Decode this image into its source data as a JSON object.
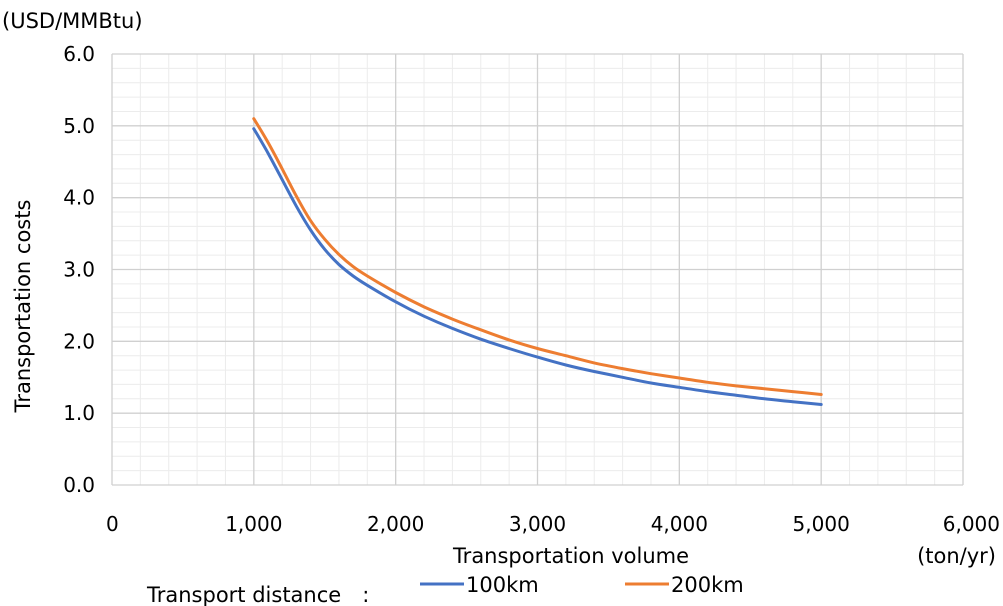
{
  "chart_data": {
    "type": "line",
    "y_unit": "(USD/MMBtu)",
    "x_unit": "(ton/yr)",
    "xlabel": "Transportation volume",
    "ylabel": "Transportation costs",
    "xlim": [
      0,
      6000
    ],
    "ylim": [
      0,
      6
    ],
    "x_ticks": [
      0,
      1000,
      2000,
      3000,
      4000,
      5000,
      6000
    ],
    "x_tick_labels": [
      "0",
      "1,000",
      "2,000",
      "3,000",
      "4,000",
      "5,000",
      "6,000"
    ],
    "y_ticks": [
      0,
      1,
      2,
      3,
      4,
      5,
      6
    ],
    "y_tick_labels": [
      "0.0",
      "1.0",
      "2.0",
      "3.0",
      "4.0",
      "5.0",
      "6.0"
    ],
    "grid": true,
    "minor_grid": true,
    "legend_title": "Transport distance　:",
    "legend_position": "bottom",
    "series": [
      {
        "name": "100km",
        "color": "#4472C4",
        "x": [
          1000,
          1100,
          1200,
          1300,
          1400,
          1500,
          1600,
          1700,
          1800,
          2000,
          2200,
          2400,
          2600,
          2800,
          3000,
          3200,
          3400,
          3600,
          3800,
          4000,
          4200,
          4400,
          4600,
          4800,
          5000
        ],
        "y": [
          4.96,
          4.62,
          4.25,
          3.88,
          3.55,
          3.28,
          3.07,
          2.91,
          2.78,
          2.55,
          2.35,
          2.18,
          2.03,
          1.9,
          1.78,
          1.67,
          1.58,
          1.5,
          1.42,
          1.36,
          1.3,
          1.25,
          1.2,
          1.16,
          1.12
        ]
      },
      {
        "name": "200km",
        "color": "#ED7D31",
        "x": [
          1000,
          1100,
          1200,
          1300,
          1400,
          1500,
          1600,
          1700,
          1800,
          2000,
          2200,
          2400,
          2600,
          2800,
          3000,
          3200,
          3400,
          3600,
          3800,
          4000,
          4200,
          4400,
          4600,
          4800,
          5000
        ],
        "y": [
          5.1,
          4.77,
          4.4,
          4.02,
          3.68,
          3.42,
          3.21,
          3.04,
          2.91,
          2.68,
          2.48,
          2.31,
          2.16,
          2.02,
          1.9,
          1.8,
          1.7,
          1.62,
          1.55,
          1.49,
          1.43,
          1.38,
          1.34,
          1.3,
          1.26
        ]
      }
    ]
  }
}
